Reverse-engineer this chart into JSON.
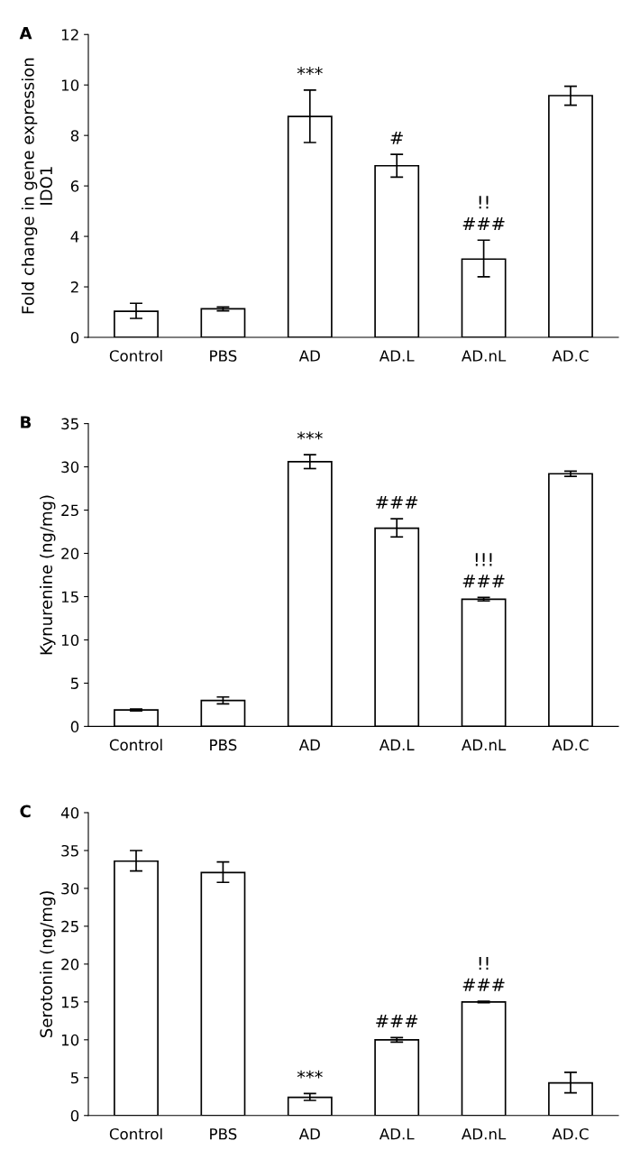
{
  "chart_data": [
    {
      "type": "bar",
      "title": "A",
      "ylabel": "Fold change in gene expression\nIDO1",
      "categories": [
        "Control",
        "PBS",
        "AD",
        "AD.L",
        "AD.nL",
        "AD.C"
      ],
      "color": "#ffffff",
      "values": [
        1.03,
        1.13,
        8.75,
        6.8,
        3.1,
        9.58
      ],
      "errors": [
        [
          0.75,
          1.35
        ],
        [
          1.05,
          1.2
        ],
        [
          7.72,
          9.8
        ],
        [
          6.35,
          7.25
        ],
        [
          2.4,
          3.85
        ],
        [
          9.2,
          9.95
        ]
      ],
      "ylim": [
        0,
        12
      ],
      "yticks": [
        0,
        2,
        4,
        6,
        8,
        10,
        12
      ],
      "grid": false,
      "legend": false,
      "annotations": [
        {
          "text": "***",
          "x": "AD",
          "y": 8.75
        },
        {
          "text": "#",
          "x": "AD.L",
          "y": 6.8
        },
        {
          "text": "###",
          "x": "AD.nL",
          "y": 3.1
        },
        {
          "text": "!!",
          "x": "AD.nL",
          "y": 3.1
        }
      ]
    },
    {
      "type": "bar",
      "title": "B",
      "ylabel": "Kynurenine (ng/mg)",
      "categories": [
        "Control",
        "PBS",
        "AD",
        "AD.L",
        "AD.nL",
        "AD.C"
      ],
      "color": "#ffffff",
      "values": [
        1.9,
        3.0,
        30.6,
        22.9,
        14.7,
        29.2
      ],
      "errors": [
        [
          1.8,
          2.0
        ],
        [
          2.6,
          3.4
        ],
        [
          29.8,
          31.4
        ],
        [
          21.9,
          24.0
        ],
        [
          14.5,
          14.9
        ],
        [
          28.9,
          29.5
        ]
      ],
      "ylim": [
        0,
        35
      ],
      "yticks": [
        0,
        5,
        10,
        15,
        20,
        25,
        30,
        35
      ],
      "grid": false,
      "legend": false,
      "annotations": [
        {
          "text": "***",
          "x": "AD",
          "y": 30.6
        },
        {
          "text": "###",
          "x": "AD.L",
          "y": 22.9
        },
        {
          "text": "###",
          "x": "AD.nL",
          "y": 14.7
        },
        {
          "text": "!!!",
          "x": "AD.nL",
          "y": 14.7
        }
      ]
    },
    {
      "type": "bar",
      "title": "C",
      "ylabel": "Serotonin (ng/mg)",
      "categories": [
        "Control",
        "PBS",
        "AD",
        "AD.L",
        "AD.nL",
        "AD.C"
      ],
      "color": "#ffffff",
      "values": [
        33.6,
        32.1,
        2.4,
        10.0,
        15.0,
        4.3
      ],
      "errors": [
        [
          32.3,
          35.0
        ],
        [
          30.8,
          33.5
        ],
        [
          2.0,
          2.9
        ],
        [
          9.7,
          10.3
        ],
        [
          14.9,
          15.1
        ],
        [
          3.0,
          5.7
        ]
      ],
      "ylim": [
        0,
        40
      ],
      "yticks": [
        0,
        5,
        10,
        15,
        20,
        25,
        30,
        35,
        40
      ],
      "grid": false,
      "legend": false,
      "annotations": [
        {
          "text": "***",
          "x": "AD",
          "y": 2.4
        },
        {
          "text": "###",
          "x": "AD.L",
          "y": 10.0
        },
        {
          "text": "###",
          "x": "AD.nL",
          "y": 15.0
        },
        {
          "text": "!!",
          "x": "AD.nL",
          "y": 15.0
        }
      ]
    }
  ]
}
